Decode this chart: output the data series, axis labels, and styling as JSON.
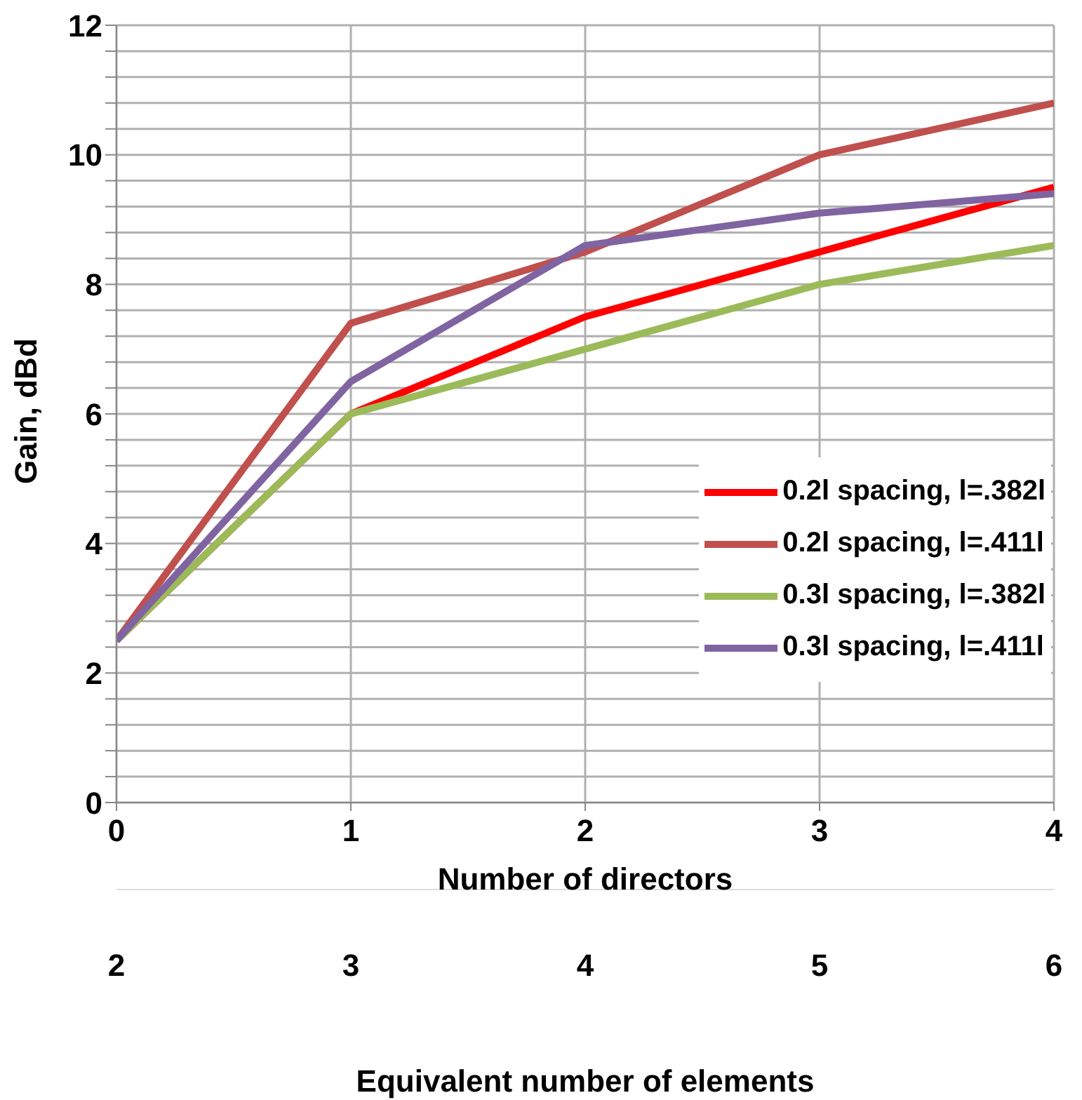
{
  "chart_data": {
    "type": "line",
    "xlabel": "Number of directors",
    "ylabel": "Gain, dBd",
    "x2label": "Equivalent number of elements",
    "x": [
      0,
      1,
      2,
      3,
      4
    ],
    "xlim": [
      0,
      4
    ],
    "xticks": [
      0,
      1,
      2,
      3,
      4
    ],
    "x2lim": [
      2,
      6
    ],
    "x2ticks": [
      2,
      3,
      4,
      5,
      6
    ],
    "ylim": [
      0,
      12
    ],
    "yticks": [
      0,
      {
        "value": 0.4,
        "label": null
      },
      {
        "value": 0.8,
        "label": null
      },
      {
        "value": 1.2,
        "label": null
      },
      {
        "value": 1.6,
        "label": null
      },
      2,
      {
        "value": 2.4,
        "label": null
      },
      {
        "value": 2.8,
        "label": null
      },
      {
        "value": 3.2,
        "label": null
      },
      {
        "value": 3.6,
        "label": null
      },
      4,
      {
        "value": 4.4,
        "label": null
      },
      {
        "value": 4.8,
        "label": null
      },
      {
        "value": 5.2,
        "label": null
      },
      {
        "value": 5.6,
        "label": null
      },
      6,
      {
        "value": 6.4,
        "label": null
      },
      {
        "value": 6.8,
        "label": null
      },
      {
        "value": 7.2,
        "label": null
      },
      {
        "value": 7.6,
        "label": null
      },
      8,
      {
        "value": 8.4,
        "label": null
      },
      {
        "value": 8.8,
        "label": null
      },
      {
        "value": 9.2,
        "label": null
      },
      {
        "value": 9.6,
        "label": null
      },
      10,
      {
        "value": 10.4,
        "label": null
      },
      {
        "value": 10.8,
        "label": null
      },
      {
        "value": 11.2,
        "label": null
      },
      {
        "value": 11.6,
        "label": null
      },
      12
    ],
    "grid": true,
    "legend": "right",
    "marker": "none",
    "line_style": "solid",
    "series": [
      {
        "name": "0.2l spacing, l=.382l",
        "color": "#ff0000",
        "values": [
          2.5,
          6,
          7.5,
          8.5,
          9.5
        ]
      },
      {
        "name": "0.2l spacing, l=.411l",
        "color": "#c0504d",
        "values": [
          2.5,
          7.4,
          8.5,
          10,
          10.8
        ]
      },
      {
        "name": "0.3l spacing, l=.382l",
        "color": "#9bbb59",
        "values": [
          2.5,
          6,
          7,
          8,
          8.6
        ]
      },
      {
        "name": "0.3l spacing, l=.411l",
        "color": "#8064a2",
        "values": [
          2.5,
          6.5,
          8.6,
          9.1,
          9.4
        ]
      }
    ]
  }
}
